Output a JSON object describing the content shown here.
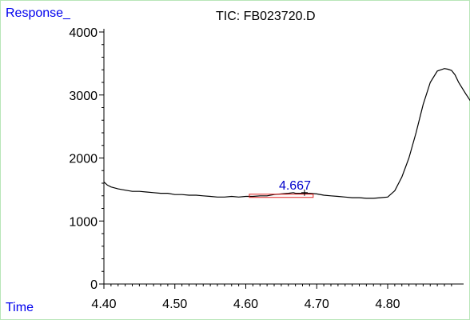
{
  "window": {
    "title": "TIC: FB023720.D",
    "y_corner_label": "Response_",
    "x_corner_label": "Time"
  },
  "colors": {
    "trace": "#000000",
    "axis": "#000000",
    "peak_label": "#0000cc",
    "integration_box": "#e02020",
    "corner_labels": "#0000ee",
    "border": "#b8e6b8"
  },
  "chart_data": {
    "type": "line",
    "title": "TIC: FB023720.D",
    "xlabel": "Time",
    "ylabel": "Response_",
    "xlim": [
      4.4,
      4.93
    ],
    "ylim": [
      0,
      4100
    ],
    "x_ticks": [
      4.4,
      4.5,
      4.6,
      4.7,
      4.8
    ],
    "x_tick_labels": [
      "4.40",
      "4.50",
      "4.60",
      "4.70",
      "4.80"
    ],
    "y_ticks": [
      0,
      1000,
      2000,
      3000,
      4000
    ],
    "y_tick_labels": [
      "0",
      "1000",
      "2000",
      "3000",
      "4000"
    ],
    "series": [
      {
        "x": [
          4.4,
          4.405,
          4.41,
          4.42,
          4.43,
          4.44,
          4.45,
          4.46,
          4.47,
          4.48,
          4.49,
          4.5,
          4.51,
          4.52,
          4.53,
          4.54,
          4.55,
          4.56,
          4.57,
          4.58,
          4.59,
          4.6,
          4.61,
          4.62,
          4.63,
          4.64,
          4.65,
          4.66,
          4.667,
          4.67,
          4.68,
          4.69,
          4.7,
          4.71,
          4.72,
          4.73,
          4.74,
          4.75,
          4.76,
          4.77,
          4.78,
          4.79,
          4.8,
          4.81,
          4.82,
          4.83,
          4.84,
          4.85,
          4.86,
          4.87,
          4.88,
          4.885,
          4.89,
          4.895,
          4.9,
          4.91,
          4.92,
          4.93
        ],
        "y": [
          1620,
          1570,
          1540,
          1510,
          1490,
          1470,
          1470,
          1460,
          1450,
          1440,
          1440,
          1420,
          1420,
          1410,
          1410,
          1400,
          1390,
          1380,
          1380,
          1390,
          1380,
          1390,
          1390,
          1400,
          1400,
          1420,
          1430,
          1440,
          1450,
          1440,
          1440,
          1440,
          1430,
          1410,
          1400,
          1390,
          1380,
          1370,
          1370,
          1360,
          1360,
          1370,
          1380,
          1480,
          1700,
          2000,
          2400,
          2850,
          3200,
          3380,
          3420,
          3410,
          3390,
          3320,
          3200,
          3020,
          2850,
          2800
        ]
      }
    ],
    "annotations": [
      {
        "label": "4.667",
        "x": 4.667,
        "y": 1450
      }
    ],
    "integration": {
      "x_start": 4.605,
      "x_end": 4.695,
      "y": 1400
    },
    "grid": false
  }
}
